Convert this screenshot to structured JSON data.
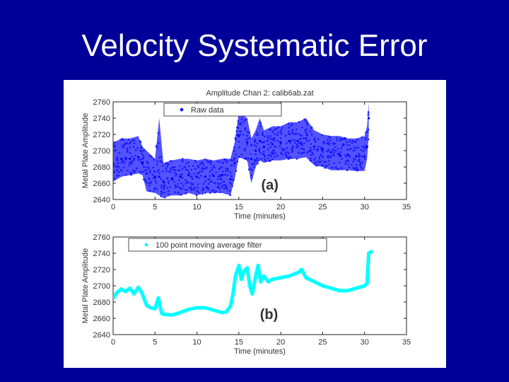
{
  "slide": {
    "title": "Velocity Systematic Error"
  },
  "colors": {
    "background": "#000099",
    "raw": "#1a1aff",
    "filtered": "#00ffff",
    "title_text": "#ffffff"
  },
  "chart_data": [
    {
      "type": "scatter",
      "title": "Amplitude Chan 2: calib6ab.zat",
      "xlabel": "Time (minutes)",
      "ylabel": "Metal Plate Amplitude",
      "xlim": [
        0,
        35
      ],
      "ylim": [
        2640,
        2760
      ],
      "xticks": [
        0,
        5,
        10,
        15,
        20,
        25,
        30,
        35
      ],
      "yticks": [
        2640,
        2660,
        2680,
        2700,
        2720,
        2740,
        2760
      ],
      "panel_label": "(a)",
      "legend": "top-left",
      "series": [
        {
          "name": "Raw data",
          "style": "dense band of points",
          "x": [
            0,
            1,
            2,
            3,
            3.5,
            4,
            5,
            5.5,
            6,
            7,
            8,
            9,
            10,
            11,
            12,
            13,
            14,
            14.5,
            15,
            16,
            16.5,
            17,
            17.5,
            18,
            19,
            20,
            21,
            22,
            23,
            24,
            25,
            26,
            27,
            28,
            29,
            30,
            30.3,
            30.5
          ],
          "center": [
            2682,
            2690,
            2690,
            2692,
            2685,
            2672,
            2668,
            2668,
            2662,
            2665,
            2668,
            2670,
            2668,
            2668,
            2669,
            2670,
            2665,
            2685,
            2718,
            2710,
            2690,
            2700,
            2712,
            2705,
            2708,
            2710,
            2712,
            2712,
            2715,
            2705,
            2702,
            2698,
            2695,
            2695,
            2693,
            2693,
            2705,
            2740
          ],
          "low": [
            2662,
            2668,
            2670,
            2672,
            2670,
            2650,
            2648,
            2645,
            2642,
            2645,
            2645,
            2648,
            2645,
            2648,
            2648,
            2648,
            2645,
            2665,
            2692,
            2688,
            2660,
            2680,
            2688,
            2685,
            2688,
            2688,
            2690,
            2690,
            2692,
            2682,
            2680,
            2676,
            2676,
            2676,
            2675,
            2675,
            2690,
            2720
          ],
          "high": [
            2710,
            2715,
            2715,
            2718,
            2705,
            2700,
            2690,
            2740,
            2685,
            2688,
            2690,
            2690,
            2688,
            2690,
            2688,
            2690,
            2690,
            2710,
            2748,
            2740,
            2715,
            2725,
            2740,
            2725,
            2730,
            2730,
            2735,
            2735,
            2740,
            2725,
            2720,
            2718,
            2718,
            2715,
            2715,
            2718,
            2730,
            2760
          ]
        }
      ]
    },
    {
      "type": "line",
      "xlabel": "Time (minutes)",
      "ylabel": "Metal Plate Amplitude",
      "xlim": [
        0,
        35
      ],
      "ylim": [
        2640,
        2760
      ],
      "xticks": [
        0,
        5,
        10,
        15,
        20,
        25,
        30,
        35
      ],
      "yticks": [
        2640,
        2660,
        2680,
        2700,
        2720,
        2740,
        2760
      ],
      "panel_label": "(b)",
      "legend": "top-left",
      "series": [
        {
          "name": "100 point moving average filter",
          "x": [
            0,
            0.5,
            1,
            1.5,
            2,
            2.5,
            3,
            3.4,
            3.7,
            4,
            4.5,
            5,
            5.4,
            5.6,
            5.8,
            6,
            7,
            8,
            9,
            10,
            11,
            12,
            13,
            13.5,
            14,
            14.3,
            14.6,
            15,
            15.3,
            15.6,
            16,
            16.3,
            16.6,
            17,
            17.3,
            17.6,
            18,
            18.5,
            19,
            20,
            21,
            22,
            22.5,
            23,
            24,
            25,
            26,
            27,
            28,
            29,
            30,
            30.3,
            30.5,
            30.8
          ],
          "y": [
            2685,
            2692,
            2696,
            2693,
            2697,
            2690,
            2698,
            2692,
            2684,
            2676,
            2673,
            2672,
            2685,
            2675,
            2666,
            2665,
            2664,
            2667,
            2671,
            2673,
            2673,
            2670,
            2667,
            2668,
            2675,
            2690,
            2712,
            2725,
            2708,
            2718,
            2722,
            2700,
            2690,
            2712,
            2725,
            2705,
            2712,
            2705,
            2708,
            2710,
            2712,
            2716,
            2720,
            2710,
            2705,
            2700,
            2697,
            2694,
            2694,
            2697,
            2700,
            2703,
            2740,
            2742
          ]
        }
      ]
    }
  ]
}
